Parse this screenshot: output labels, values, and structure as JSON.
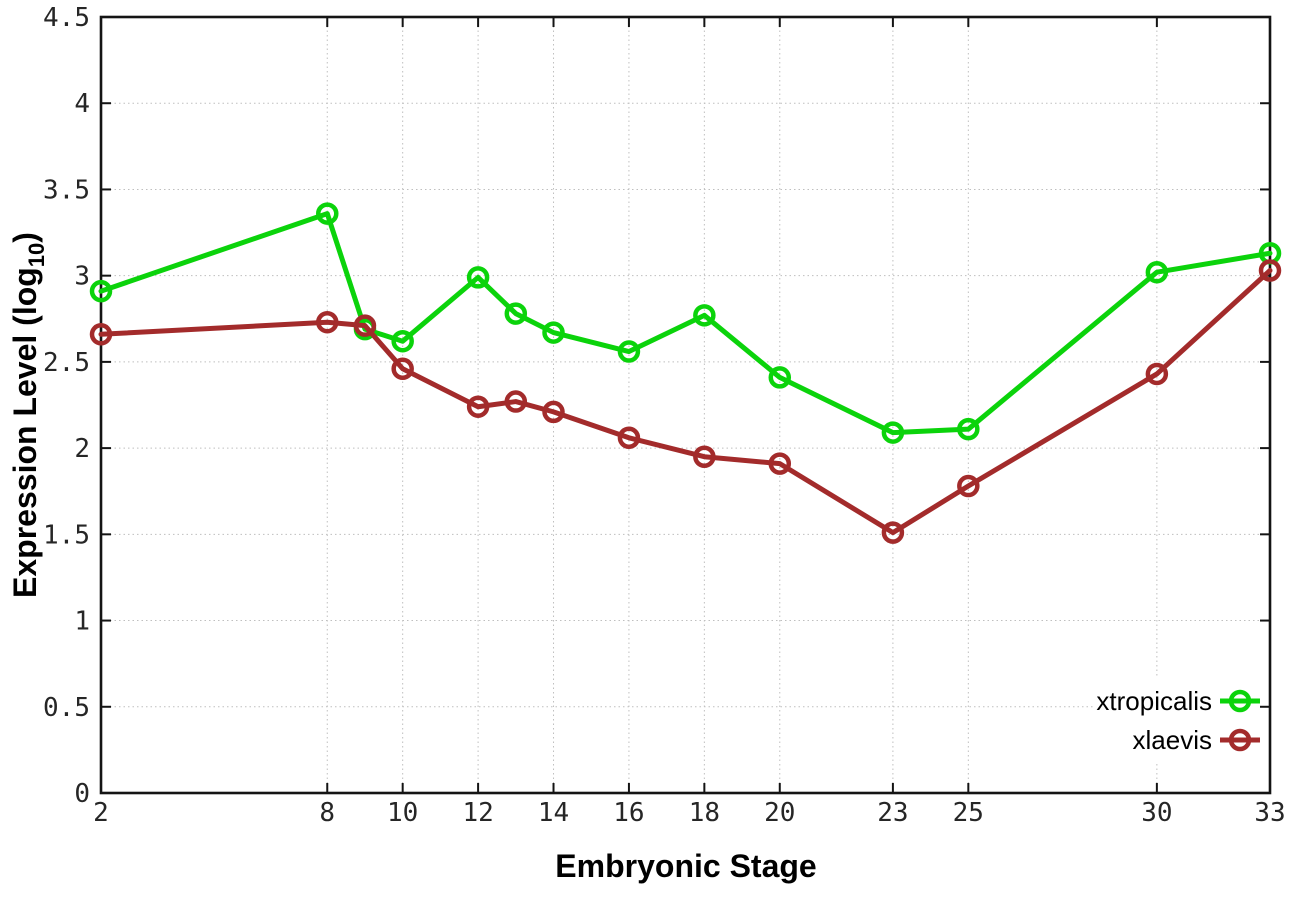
{
  "chart_data": {
    "type": "line",
    "title": "",
    "xlabel": "Embryonic Stage",
    "ylabel": "Expression Level (log10)",
    "ylabel_parts": {
      "pre": "Expression Level (log",
      "sub": "10",
      "post": ")"
    },
    "x": [
      2,
      8,
      9,
      10,
      12,
      13,
      14,
      16,
      18,
      20,
      23,
      25,
      30,
      33
    ],
    "series": [
      {
        "name": "xtropicalis",
        "color": "#0bd30b",
        "values": [
          2.91,
          3.36,
          2.69,
          2.62,
          2.99,
          2.78,
          2.67,
          2.56,
          2.77,
          2.41,
          2.09,
          2.11,
          3.02,
          3.13
        ]
      },
      {
        "name": "xlaevis",
        "color": "#a32b2b",
        "values": [
          2.66,
          2.73,
          2.71,
          2.46,
          2.24,
          2.27,
          2.21,
          2.06,
          1.95,
          1.91,
          1.51,
          1.78,
          2.43,
          3.03
        ]
      }
    ],
    "xlim": [
      2,
      33
    ],
    "ylim": [
      0,
      4.5
    ],
    "xticks": {
      "values": [
        2,
        8,
        10,
        12,
        14,
        16,
        18,
        20,
        23,
        25,
        30,
        33
      ],
      "labels": [
        "2",
        "8",
        "10",
        "12",
        "14",
        "16",
        "18",
        "20",
        "23",
        "25",
        "30",
        "33"
      ]
    },
    "yticks": {
      "values": [
        0,
        0.5,
        1,
        1.5,
        2,
        2.5,
        3,
        3.5,
        4,
        4.5
      ],
      "labels": [
        "0",
        "0.5",
        "1",
        "1.5",
        "2",
        "2.5",
        "3",
        "3.5",
        "4",
        "4.5"
      ]
    },
    "grid": true,
    "legend_position": "bottom-right",
    "marker_style": "open-circle",
    "colors": {
      "grid": "#bfbfbf",
      "border": "#141414",
      "tick_label": "#262626",
      "text": "#000000",
      "background": "#ffffff"
    }
  }
}
